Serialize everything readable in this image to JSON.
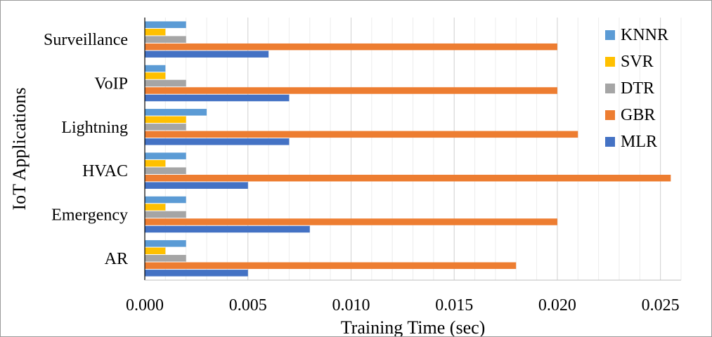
{
  "chart_data": {
    "type": "bar",
    "orientation": "horizontal",
    "title": "",
    "xlabel": "Training Time (sec)",
    "ylabel": "IoT Applications",
    "categories": [
      "Surveillance",
      "VoIP",
      "Lightning",
      "HVAC",
      "Emergency",
      "AR"
    ],
    "xlim": [
      0,
      0.026
    ],
    "x_ticks": [
      "0.000",
      "0.005",
      "0.010",
      "0.015",
      "0.020",
      "0.025"
    ],
    "grid": "vertical major and minor gridlines",
    "legend_position": "top-right",
    "series": [
      {
        "name": "KNNR",
        "color": "#5B9BD5",
        "values": [
          0.002,
          0.001,
          0.003,
          0.002,
          0.002,
          0.002
        ]
      },
      {
        "name": "SVR",
        "color": "#FFC000",
        "values": [
          0.001,
          0.001,
          0.002,
          0.001,
          0.001,
          0.001
        ]
      },
      {
        "name": "DTR",
        "color": "#A5A5A5",
        "values": [
          0.002,
          0.002,
          0.002,
          0.002,
          0.002,
          0.002
        ]
      },
      {
        "name": "GBR",
        "color": "#ED7D31",
        "values": [
          0.02,
          0.02,
          0.021,
          0.0255,
          0.02,
          0.018
        ]
      },
      {
        "name": "MLR",
        "color": "#4472C4",
        "values": [
          0.006,
          0.007,
          0.007,
          0.005,
          0.008,
          0.005
        ]
      }
    ]
  }
}
